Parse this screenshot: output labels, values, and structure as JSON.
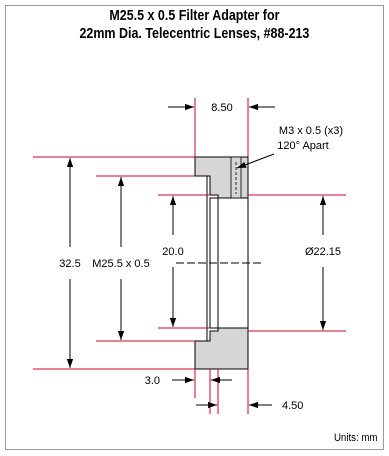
{
  "title": {
    "line1": "M25.5 x 0.5 Filter Adapter for",
    "line2": "22mm Dia. Telecentric Lenses, #88-213"
  },
  "dimensions": {
    "width_top": "8.50",
    "thread_note_line1": "M3 x 0.5 (x3)",
    "thread_note_line2": "120° Apart",
    "outer_diameter": "32.5",
    "thread": "M25.5 x 0.5",
    "inner_aperture": "20.0",
    "bore_diameter": "Ø22.15",
    "lip_width": "3.0",
    "step_width": "4.50"
  },
  "units_label": "Units: mm",
  "colors": {
    "dimension_line": "#d4002a",
    "part_fill": "#d6d6d6",
    "outline": "#000000",
    "frame": "#9a9a9a"
  }
}
